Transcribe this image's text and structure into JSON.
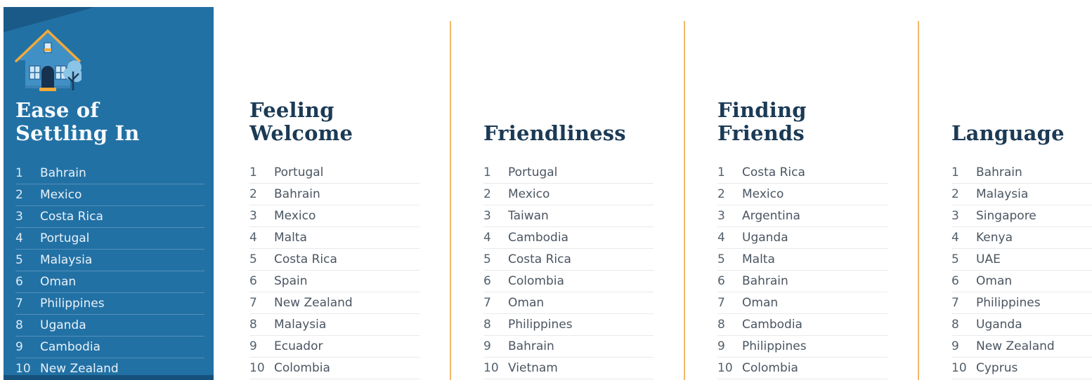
{
  "colors": {
    "panel_background": "#2271a5",
    "panel_bottom_strip": "#16517c",
    "divider_orange": "#f2b76b",
    "title_navy": "#1b3a55",
    "panel_title_white": "#f7fafc",
    "list_text": "#4a5561",
    "panel_list_text": "#e9f2f8",
    "house_blue": "#4190c5",
    "house_trim_orange": "#f2a93b",
    "tree_blue": "#8ac4e6"
  },
  "columns": [
    {
      "key": "ease-of-settling-in",
      "title": "Ease of Settling In",
      "title_lines": [
        "Ease of",
        "Settling In"
      ],
      "highlighted": true,
      "icon": "house-icon",
      "items": [
        {
          "rank": "1",
          "country": "Bahrain"
        },
        {
          "rank": "2",
          "country": "Mexico"
        },
        {
          "rank": "3",
          "country": "Costa Rica"
        },
        {
          "rank": "4",
          "country": "Portugal"
        },
        {
          "rank": "5",
          "country": "Malaysia"
        },
        {
          "rank": "6",
          "country": "Oman"
        },
        {
          "rank": "7",
          "country": "Philippines"
        },
        {
          "rank": "8",
          "country": "Uganda"
        },
        {
          "rank": "9",
          "country": "Cambodia"
        },
        {
          "rank": "10",
          "country": "New Zealand"
        }
      ]
    },
    {
      "key": "feeling-welcome",
      "title": "Feeling Welcome",
      "title_lines": [
        "Feeling",
        "Welcome"
      ],
      "highlighted": false,
      "items": [
        {
          "rank": "1",
          "country": "Portugal"
        },
        {
          "rank": "2",
          "country": "Bahrain"
        },
        {
          "rank": "3",
          "country": "Mexico"
        },
        {
          "rank": "4",
          "country": "Malta"
        },
        {
          "rank": "5",
          "country": "Costa Rica"
        },
        {
          "rank": "6",
          "country": "Spain"
        },
        {
          "rank": "7",
          "country": "New Zealand"
        },
        {
          "rank": "8",
          "country": "Malaysia"
        },
        {
          "rank": "9",
          "country": "Ecuador"
        },
        {
          "rank": "10",
          "country": "Colombia"
        }
      ]
    },
    {
      "key": "friendliness",
      "title": "Friendliness",
      "title_lines": [
        "Friendliness"
      ],
      "highlighted": false,
      "items": [
        {
          "rank": "1",
          "country": "Portugal"
        },
        {
          "rank": "2",
          "country": "Mexico"
        },
        {
          "rank": "3",
          "country": "Taiwan"
        },
        {
          "rank": "4",
          "country": "Cambodia"
        },
        {
          "rank": "5",
          "country": "Costa Rica"
        },
        {
          "rank": "6",
          "country": "Colombia"
        },
        {
          "rank": "7",
          "country": "Oman"
        },
        {
          "rank": "8",
          "country": "Philippines"
        },
        {
          "rank": "9",
          "country": "Bahrain"
        },
        {
          "rank": "10",
          "country": "Vietnam"
        }
      ]
    },
    {
      "key": "finding-friends",
      "title": "Finding Friends",
      "title_lines": [
        "Finding",
        "Friends"
      ],
      "highlighted": false,
      "items": [
        {
          "rank": "1",
          "country": "Costa Rica"
        },
        {
          "rank": "2",
          "country": "Mexico"
        },
        {
          "rank": "3",
          "country": "Argentina"
        },
        {
          "rank": "4",
          "country": "Uganda"
        },
        {
          "rank": "5",
          "country": "Malta"
        },
        {
          "rank": "6",
          "country": "Bahrain"
        },
        {
          "rank": "7",
          "country": "Oman"
        },
        {
          "rank": "8",
          "country": "Cambodia"
        },
        {
          "rank": "9",
          "country": "Philippines"
        },
        {
          "rank": "10",
          "country": "Colombia"
        }
      ]
    },
    {
      "key": "language",
      "title": "Language",
      "title_lines": [
        "Language"
      ],
      "highlighted": false,
      "items": [
        {
          "rank": "1",
          "country": "Bahrain"
        },
        {
          "rank": "2",
          "country": "Malaysia"
        },
        {
          "rank": "3",
          "country": "Singapore"
        },
        {
          "rank": "4",
          "country": "Kenya"
        },
        {
          "rank": "5",
          "country": "UAE"
        },
        {
          "rank": "6",
          "country": "Oman"
        },
        {
          "rank": "7",
          "country": "Philippines"
        },
        {
          "rank": "8",
          "country": "Uganda"
        },
        {
          "rank": "9",
          "country": "New Zealand"
        },
        {
          "rank": "10",
          "country": "Cyprus"
        }
      ]
    }
  ]
}
